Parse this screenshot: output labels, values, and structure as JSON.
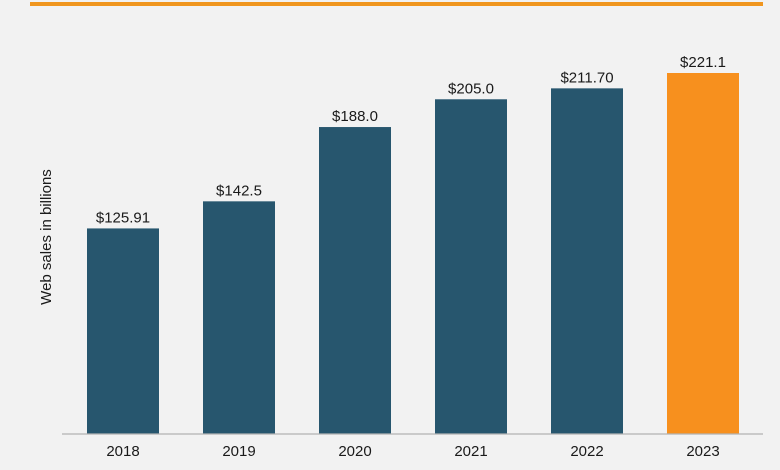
{
  "colors": {
    "top_rule": "#f0961f",
    "bar_default": "#27566e",
    "bar_highlight": "#f7901e",
    "baseline": "#b3b3b3",
    "background": "#f2f2f2"
  },
  "chart_data": {
    "type": "bar",
    "title": "",
    "xlabel": "",
    "ylabel": "Web sales in billions",
    "categories": [
      "2018",
      "2019",
      "2020",
      "2021",
      "2022",
      "2023"
    ],
    "values": [
      125.91,
      142.5,
      188.0,
      205.0,
      211.7,
      221.1
    ],
    "value_labels": [
      "$125.91",
      "$142.5",
      "$188.0",
      "$205.0",
      "$211.70",
      "$221.1"
    ],
    "highlight_category": "2023",
    "ylim": [
      0,
      221.1
    ],
    "grid": false,
    "legend": "none"
  }
}
